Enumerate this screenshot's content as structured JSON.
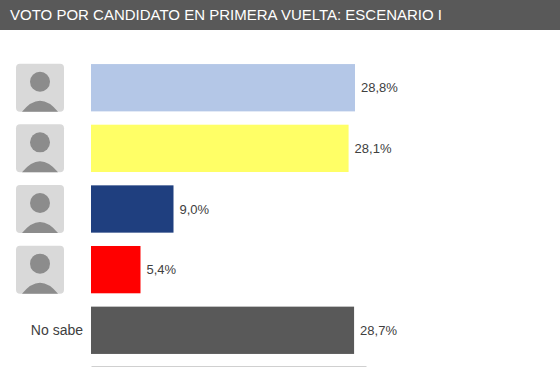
{
  "chart_data": {
    "type": "bar",
    "orientation": "horizontal",
    "title": "VOTO POR CANDIDATO EN PRIMERA VUELTA: ESCENARIO I",
    "categories": [
      null,
      null,
      null,
      null,
      "No sabe"
    ],
    "values": [
      28.8,
      28.1,
      9.0,
      5.4,
      28.7
    ],
    "value_labels": [
      "28,8%",
      "28,1%",
      "9,0%",
      "5,4%",
      "28,7%"
    ],
    "colors": [
      "#b4c7e7",
      "#ffff66",
      "#1f3f7f",
      "#ff0000",
      "#595959"
    ],
    "xlim": [
      0,
      30
    ],
    "data_labels": true,
    "tick_labels": "y",
    "grid": false
  }
}
